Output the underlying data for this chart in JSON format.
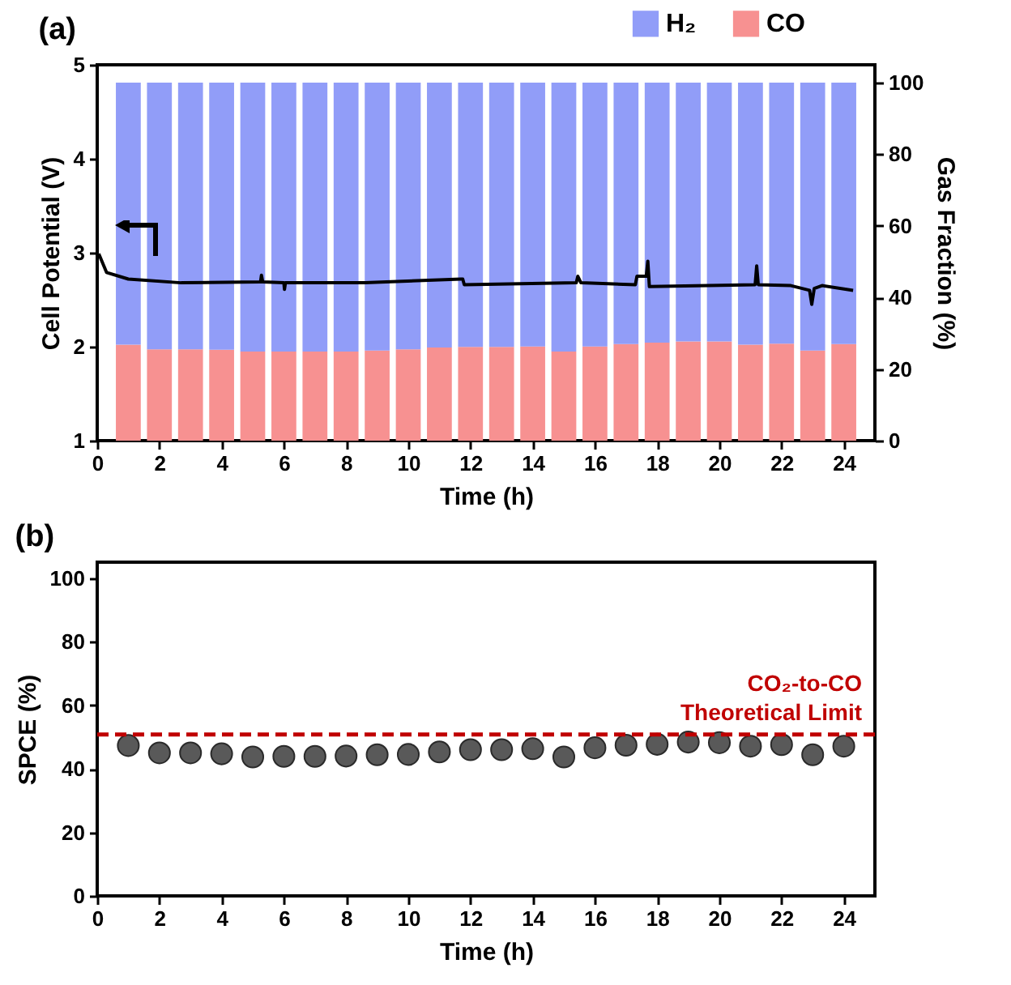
{
  "chart_data": [
    {
      "type": "bar",
      "title": "(a)",
      "xlabel": "Time (h)",
      "ylabel": "Cell Potential (V)",
      "y2label": "Gas Fraction (%)",
      "x": [
        1,
        2,
        3,
        4,
        5,
        6,
        7,
        8,
        9,
        10,
        11,
        12,
        13,
        14,
        15,
        16,
        17,
        18,
        19,
        20,
        21,
        22,
        23,
        24
      ],
      "stacked": true,
      "xlim": [
        0,
        25
      ],
      "xticks": [
        0,
        2,
        4,
        6,
        8,
        10,
        12,
        14,
        16,
        18,
        20,
        22,
        24
      ],
      "ylim": [
        1,
        5
      ],
      "yticks": [
        1,
        2,
        3,
        4,
        5
      ],
      "y2lim": [
        0,
        105
      ],
      "y2ticks": [
        0,
        20,
        40,
        60,
        80,
        100
      ],
      "legend": "top right",
      "grid": false,
      "series": [
        {
          "name": "CO",
          "color": "#f79191",
          "axis": "y2",
          "values": [
            26.8,
            25.5,
            25.5,
            25.4,
            24.9,
            24.9,
            24.9,
            24.9,
            25.2,
            25.5,
            26.0,
            26.2,
            26.2,
            26.3,
            24.9,
            26.3,
            27.0,
            27.4,
            27.7,
            27.7,
            26.8,
            27.1,
            25.2,
            27.0
          ]
        },
        {
          "name": "H₂",
          "color": "#919df8",
          "axis": "y2",
          "values": [
            73.2,
            74.5,
            74.5,
            74.6,
            75.1,
            75.1,
            75.1,
            75.1,
            74.8,
            74.5,
            74.0,
            73.8,
            73.8,
            73.7,
            75.1,
            73.7,
            73.0,
            72.6,
            72.3,
            72.3,
            73.2,
            72.9,
            74.8,
            73.0
          ]
        },
        {
          "type": "line",
          "axis": "y",
          "color": "#000000",
          "x": [
            0.05,
            0.3,
            1.0,
            2.7,
            5.25,
            5.28,
            5.32,
            6.0,
            6.02,
            6.05,
            8.6,
            11.7,
            11.75,
            11.8,
            15.4,
            15.45,
            15.55,
            17.3,
            17.35,
            17.65,
            17.7,
            17.75,
            21.15,
            21.2,
            21.25,
            22.3,
            22.9,
            22.97,
            23.05,
            23.3,
            24.3
          ],
          "values": [
            2.99,
            2.79,
            2.72,
            2.68,
            2.69,
            2.76,
            2.69,
            2.68,
            2.61,
            2.68,
            2.68,
            2.72,
            2.72,
            2.66,
            2.68,
            2.75,
            2.68,
            2.66,
            2.75,
            2.75,
            2.91,
            2.64,
            2.66,
            2.86,
            2.66,
            2.65,
            2.6,
            2.45,
            2.62,
            2.65,
            2.6
          ]
        }
      ]
    },
    {
      "type": "scatter",
      "title": "(b)",
      "xlabel": "Time (h)",
      "ylabel": "SPCE (%)",
      "x": [
        1,
        2,
        3,
        4,
        5,
        6,
        7,
        8,
        9,
        10,
        11,
        12,
        13,
        14,
        15,
        16,
        17,
        18,
        19,
        20,
        21,
        22,
        23,
        24
      ],
      "values": [
        47.3,
        45.0,
        45.0,
        44.7,
        43.7,
        43.9,
        43.9,
        44.0,
        44.4,
        44.5,
        45.3,
        46.0,
        46.0,
        46.3,
        43.7,
        46.6,
        47.4,
        47.7,
        48.4,
        48.2,
        47.1,
        47.6,
        44.4,
        47.1
      ],
      "color": "#595959",
      "marker": "circle",
      "xlim": [
        0,
        25
      ],
      "xticks": [
        0,
        2,
        4,
        6,
        8,
        10,
        12,
        14,
        16,
        18,
        20,
        22,
        24
      ],
      "ylim": [
        0,
        105
      ],
      "yticks": [
        0,
        20,
        40,
        60,
        80,
        100
      ],
      "grid": false,
      "ref_lines": [
        {
          "axis": "y",
          "value": 50.8,
          "label": "CO₂-to-CO\nTheoretical Limit",
          "color": "#c00000",
          "line_style": "dashed"
        }
      ]
    }
  ]
}
